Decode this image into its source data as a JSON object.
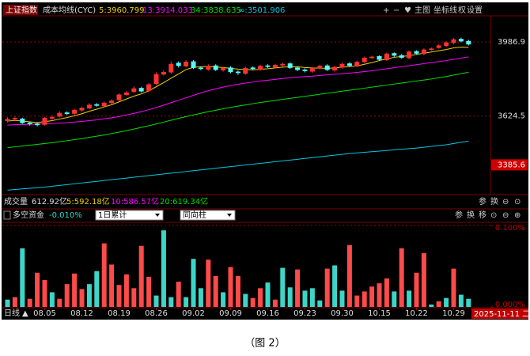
{
  "chart_data": [
    {
      "type": "candlestick",
      "title": "上证指数",
      "subtitle": "成本均线(CYC)",
      "open": [
        3600,
        3608,
        3612,
        3592,
        3588,
        3582,
        3612,
        3622,
        3642,
        3636,
        3652,
        3662,
        3682,
        3672,
        3688,
        3702,
        3728,
        3742,
        3762,
        3748,
        3782,
        3828,
        3838,
        3885,
        3868,
        3892,
        3862,
        3852,
        3872,
        3848,
        3862,
        3842,
        3832,
        3862,
        3852,
        3872,
        3862,
        3872,
        3882,
        3862,
        3852,
        3842,
        3858,
        3872,
        3848,
        3862,
        3882,
        3868,
        3888,
        3908,
        3918,
        3898,
        3932,
        3922,
        3908,
        3942,
        3928,
        3948,
        3958,
        3968,
        3982,
        4002,
        3992
      ],
      "high": [
        3618,
        3622,
        3616,
        3598,
        3594,
        3620,
        3628,
        3648,
        3648,
        3660,
        3670,
        3688,
        3688,
        3695,
        3706,
        3736,
        3748,
        3770,
        3768,
        3786,
        3838,
        3848,
        3892,
        3892,
        3898,
        3898,
        3868,
        3878,
        3878,
        3866,
        3868,
        3848,
        3866,
        3868,
        3876,
        3878,
        3880,
        3886,
        3888,
        3868,
        3858,
        3866,
        3876,
        3878,
        3870,
        3886,
        3888,
        3896,
        3916,
        3920,
        3922,
        3936,
        3936,
        3928,
        3946,
        3946,
        3956,
        3960,
        3976,
        3990,
        4006,
        4008,
        3998
      ],
      "low": [
        3594,
        3602,
        3586,
        3578,
        3574,
        3578,
        3606,
        3618,
        3630,
        3630,
        3646,
        3658,
        3670,
        3668,
        3684,
        3698,
        3724,
        3738,
        3740,
        3742,
        3778,
        3822,
        3832,
        3862,
        3862,
        3855,
        3848,
        3846,
        3845,
        3842,
        3834,
        3826,
        3826,
        3848,
        3846,
        3860,
        3858,
        3866,
        3855,
        3844,
        3838,
        3836,
        3852,
        3845,
        3842,
        3856,
        3864,
        3864,
        3884,
        3904,
        3895,
        3894,
        3914,
        3905,
        3902,
        3924,
        3922,
        3944,
        3954,
        3962,
        3976,
        3986,
        3970
      ],
      "close": [
        3610,
        3615,
        3590,
        3585,
        3580,
        3615,
        3620,
        3640,
        3635,
        3655,
        3665,
        3680,
        3675,
        3690,
        3700,
        3730,
        3740,
        3760,
        3745,
        3780,
        3830,
        3840,
        3880,
        3870,
        3890,
        3860,
        3855,
        3870,
        3850,
        3860,
        3840,
        3835,
        3860,
        3855,
        3870,
        3865,
        3875,
        3880,
        3860,
        3850,
        3845,
        3860,
        3870,
        3850,
        3865,
        3880,
        3870,
        3890,
        3910,
        3915,
        3900,
        3930,
        3920,
        3910,
        3940,
        3930,
        3950,
        3955,
        3970,
        3985,
        4000,
        3990,
        3975
      ],
      "up_color": "#ff3232",
      "down_color": "#54fcfc",
      "series": [
        {
          "name": "5:3960.799",
          "color": "#f0d000",
          "values": [
            3600,
            3603,
            3600,
            3596,
            3593,
            3597,
            3602,
            3610,
            3617,
            3626,
            3636,
            3648,
            3658,
            3669,
            3680,
            3694,
            3708,
            3722,
            3733,
            3748,
            3768,
            3788,
            3810,
            3830,
            3852,
            3863,
            3866,
            3867,
            3865,
            3862,
            3858,
            3854,
            3852,
            3851,
            3853,
            3856,
            3860,
            3864,
            3866,
            3866,
            3862,
            3860,
            3859,
            3858,
            3860,
            3864,
            3866,
            3870,
            3878,
            3886,
            3896,
            3904,
            3912,
            3916,
            3920,
            3926,
            3932,
            3938,
            3944,
            3950,
            3958,
            3962,
            3960.799
          ]
        },
        {
          "name": "13:3914.033",
          "color": "#ff00ff",
          "values": [
            3580,
            3582,
            3583,
            3584,
            3585,
            3586,
            3588,
            3590,
            3592,
            3595,
            3598,
            3602,
            3606,
            3611,
            3616,
            3622,
            3630,
            3638,
            3646,
            3656,
            3666,
            3678,
            3690,
            3702,
            3714,
            3726,
            3738,
            3748,
            3758,
            3766,
            3774,
            3780,
            3786,
            3791,
            3796,
            3800,
            3804,
            3808,
            3812,
            3815,
            3818,
            3820,
            3823,
            3826,
            3829,
            3832,
            3835,
            3838,
            3842,
            3846,
            3851,
            3856,
            3861,
            3866,
            3871,
            3876,
            3881,
            3886,
            3891,
            3896,
            3902,
            3908,
            3914.033
          ]
        },
        {
          "name": "34:3838.635",
          "color": "#00e000",
          "values": [
            3470,
            3474,
            3478,
            3482,
            3486,
            3490,
            3494,
            3499,
            3504,
            3509,
            3514,
            3520,
            3526,
            3532,
            3539,
            3546,
            3553,
            3561,
            3569,
            3577,
            3586,
            3595,
            3604,
            3613,
            3622,
            3630,
            3638,
            3646,
            3653,
            3660,
            3667,
            3673,
            3679,
            3685,
            3691,
            3696,
            3701,
            3706,
            3711,
            3716,
            3721,
            3726,
            3731,
            3736,
            3741,
            3746,
            3751,
            3756,
            3761,
            3766,
            3771,
            3776,
            3781,
            3786,
            3791,
            3796,
            3801,
            3806,
            3812,
            3818,
            3825,
            3832,
            3838.635
          ]
        },
        {
          "name": "∞:3501.906",
          "color": "#00c8e0",
          "values": [
            3262,
            3265,
            3268,
            3271,
            3274,
            3277,
            3281,
            3285,
            3289,
            3293,
            3297,
            3301,
            3305,
            3309,
            3313,
            3317,
            3321,
            3325,
            3329,
            3333,
            3337,
            3341,
            3345,
            3349,
            3353,
            3357,
            3361,
            3365,
            3369,
            3373,
            3377,
            3381,
            3385,
            3389,
            3393,
            3397,
            3401,
            3405,
            3409,
            3413,
            3417,
            3421,
            3425,
            3429,
            3433,
            3437,
            3441,
            3444,
            3447,
            3450,
            3453,
            3456,
            3459,
            3462,
            3465,
            3468,
            3472,
            3476,
            3480,
            3484,
            3490,
            3496,
            3501.906
          ]
        }
      ],
      "ylim": [
        3240,
        4115
      ],
      "yticks": [
        3624.5,
        3986.9
      ],
      "grid": true,
      "highlight_tick": 3385.6
    },
    {
      "type": "bar",
      "title": "多空资金",
      "subtitle": "-0.010%",
      "categories": [
        null,
        null,
        null,
        null,
        null,
        "08.05",
        null,
        null,
        null,
        null,
        "08.12",
        null,
        null,
        null,
        null,
        "08.19",
        null,
        null,
        null,
        null,
        "08.26",
        null,
        null,
        null,
        null,
        "09.02",
        null,
        null,
        null,
        null,
        "09.09",
        null,
        null,
        null,
        null,
        "09.16",
        null,
        null,
        null,
        null,
        "09.23",
        null,
        null,
        null,
        null,
        "09.30",
        null,
        null,
        null,
        null,
        "10.15",
        null,
        null,
        null,
        null,
        "10.22",
        null,
        null,
        null,
        null,
        "10.29",
        null,
        null
      ],
      "values": [
        0.009,
        0.012,
        0.072,
        0.01,
        0.042,
        0.033,
        0.018,
        0.01,
        0.028,
        0.041,
        0.022,
        0.028,
        0.044,
        0.078,
        0.052,
        0.027,
        0.04,
        0.023,
        0.075,
        0.037,
        0.014,
        0.094,
        0.012,
        0.031,
        0.012,
        0.059,
        0.023,
        0.058,
        0.038,
        0.018,
        0.049,
        0.038,
        0.016,
        0.011,
        0.023,
        0.03,
        0.009,
        0.048,
        0.024,
        0.046,
        0.02,
        0.023,
        0.008,
        0.047,
        0.051,
        0.02,
        0.076,
        0.014,
        0.019,
        0.025,
        0.029,
        0.035,
        0.019,
        0.072,
        0.02,
        0.042,
        0.066,
        0.003,
        0.007,
        0.011,
        0.047,
        0.015,
        0.01
      ],
      "colors": [
        "#3cd6c8",
        "#ff4a4a",
        "#3cd6c8",
        "#ff4a4a",
        "#ff4a4a",
        "#ff4a4a",
        "#3cd6c8",
        "#ff4a4a",
        "#ff4a4a",
        "#ff4a4a",
        "#ff4a4a",
        "#3cd6c8",
        "#3cd6c8",
        "#ff4a4a",
        "#ff4a4a",
        "#ff4a4a",
        "#ff4a4a",
        "#ff4a4a",
        "#ff4a4a",
        "#ff4a4a",
        "#3cd6c8",
        "#3cd6c8",
        "#3cd6c8",
        "#ff4a4a",
        "#3cd6c8",
        "#3cd6c8",
        "#3cd6c8",
        "#ff4a4a",
        "#ff4a4a",
        "#3cd6c8",
        "#ff4a4a",
        "#ff4a4a",
        "#3cd6c8",
        "#ff4a4a",
        "#ff4a4a",
        "#3cd6c8",
        "#ff4a4a",
        "#3cd6c8",
        "#3cd6c8",
        "#ff4a4a",
        "#3cd6c8",
        "#3cd6c8",
        "#3cd6c8",
        "#ff4a4a",
        "#3cd6c8",
        "#3cd6c8",
        "#ff4a4a",
        "#ff4a4a",
        "#ff4a4a",
        "#ff4a4a",
        "#ff4a4a",
        "#ff4a4a",
        "#3cd6c8",
        "#ff4a4a",
        "#3cd6c8",
        "#ff4a4a",
        "#ff4a4a",
        "#3cd6c8",
        "#ff4a4a",
        "#3cd6c8",
        "#ff4a4a",
        "#3cd6c8",
        "#3cd6c8"
      ],
      "ylim": [
        0,
        0.1
      ],
      "yticks": [
        {
          "value": 0,
          "label": "0.000%"
        },
        {
          "value": 0.1,
          "label": "0.100%"
        }
      ]
    }
  ],
  "toolbar": [
    "+",
    "−",
    "♥",
    "主图",
    "坐标线",
    "权",
    "设置"
  ],
  "volume": {
    "label": "成交量",
    "items": [
      "612.92亿",
      "5:592.18亿",
      "10:586.57亿",
      "20:619.34亿"
    ]
  },
  "volume_tools": [
    "参",
    "换",
    "⊖",
    "⊙"
  ],
  "fund_tools": [
    "参",
    "换",
    "移",
    "⊙",
    "⊖",
    "⊕"
  ],
  "selects": [
    "1日累计",
    "同向柱"
  ],
  "period": "日线",
  "cursor_date": "2025-11-11 二",
  "caption": "（图 2）"
}
